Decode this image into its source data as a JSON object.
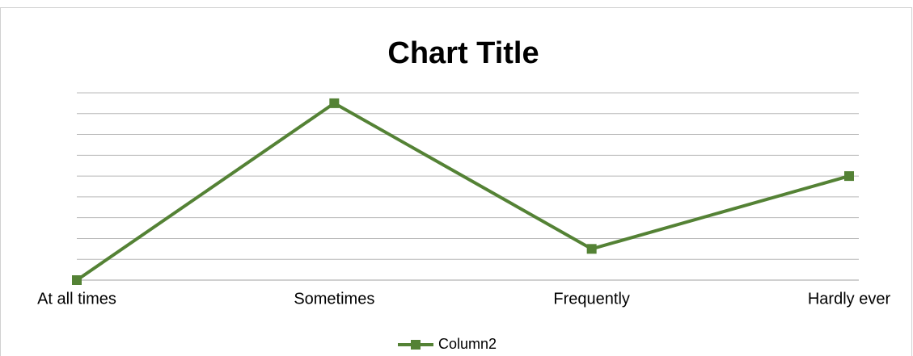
{
  "chart_data": {
    "type": "line",
    "title": "Chart Title",
    "categories": [
      "At all times",
      "Sometimes",
      "Frequently",
      "Hardly ever"
    ],
    "series": [
      {
        "name": "Column2",
        "color": "#548235",
        "values": [
          0,
          8.5,
          1.5,
          5
        ]
      }
    ],
    "ylim": [
      0,
      9
    ],
    "yticks": [
      0,
      1,
      2,
      3,
      4,
      5,
      6,
      7,
      8,
      9
    ],
    "grid": true,
    "legend": "bottom"
  }
}
